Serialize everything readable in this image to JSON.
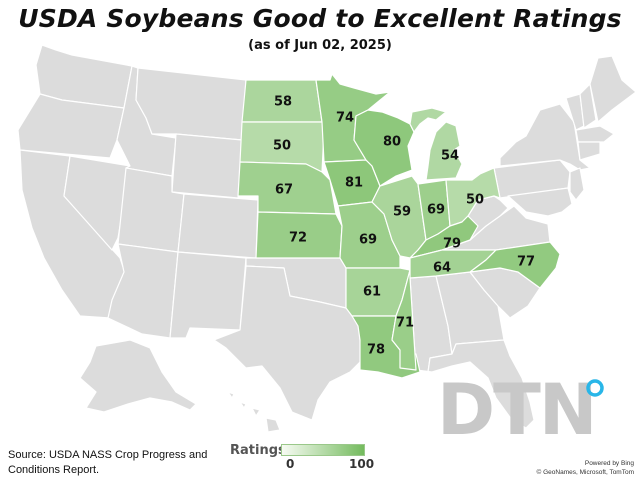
{
  "title": "USDA Soybeans Good to Excellent Ratings",
  "subtitle": "(as of Jun 02, 2025)",
  "source": "Source: USDA NASS Crop Progress and Conditions Report.",
  "legend": {
    "title": "Ratings",
    "min": "0",
    "max": "100",
    "color_low": "#f7fbf3",
    "color_high": "#74bb5e"
  },
  "logo_text": "DTN",
  "credits": {
    "powered": "Powered by Bing",
    "copyright": "© GeoNames, Microsoft, TomTom"
  },
  "colors": {
    "no_data": "#dcdcdc",
    "border": "#ffffff"
  },
  "ratings": [
    {
      "state": "North Dakota",
      "value": 58
    },
    {
      "state": "South Dakota",
      "value": 50
    },
    {
      "state": "Nebraska",
      "value": 67
    },
    {
      "state": "Kansas",
      "value": 72
    },
    {
      "state": "Minnesota",
      "value": 74
    },
    {
      "state": "Iowa",
      "value": 81
    },
    {
      "state": "Missouri",
      "value": 69
    },
    {
      "state": "Arkansas",
      "value": 61
    },
    {
      "state": "Louisiana",
      "value": 78
    },
    {
      "state": "Wisconsin",
      "value": 80
    },
    {
      "state": "Illinois",
      "value": 59
    },
    {
      "state": "Mississippi",
      "value": 71
    },
    {
      "state": "Michigan",
      "value": 54
    },
    {
      "state": "Indiana",
      "value": 69
    },
    {
      "state": "Ohio",
      "value": 50
    },
    {
      "state": "Kentucky",
      "value": 79
    },
    {
      "state": "Tennessee",
      "value": 64
    },
    {
      "state": "North Carolina",
      "value": 77
    }
  ]
}
